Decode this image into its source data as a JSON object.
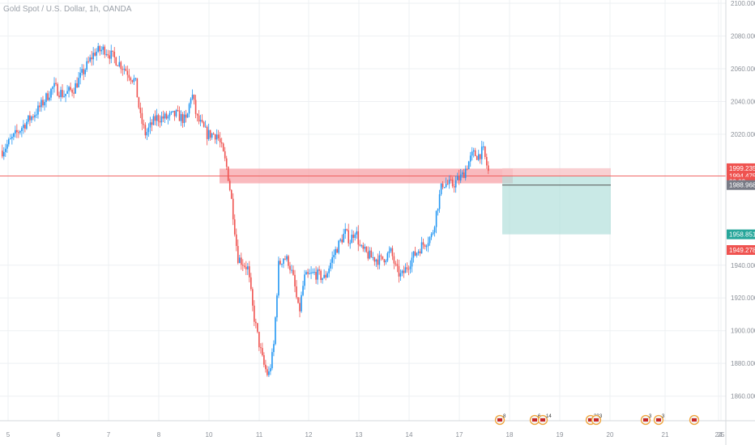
{
  "header": {
    "symbol_title": "Gold Spot / U.S. Dollar, 1h, OANDA"
  },
  "colors": {
    "up": "#2196f3",
    "down": "#ef5350",
    "zone": "#f7a3a8",
    "stop": "#f8c4c7",
    "target": "#b2dfdb",
    "grid": "#eef0f3",
    "price_line": "#ef5350"
  },
  "chart_data": {
    "type": "candlestick",
    "title": "Gold Spot / U.S. Dollar, 1h, OANDA",
    "y_range": [
      1845,
      2102
    ],
    "y_ticks": [
      "1860.000",
      "1880.000",
      "1900.000",
      "1920.000",
      "1940.000",
      "2020.000",
      "2040.000",
      "2060.000",
      "2080.000",
      "2100.000"
    ],
    "x_ticks": [
      "5",
      "6",
      "7",
      "8",
      "10",
      "11",
      "12",
      "13",
      "14",
      "17",
      "18",
      "19",
      "20",
      "21",
      "24",
      "25"
    ],
    "price_path": [
      [
        0,
        2010
      ],
      [
        4,
        2025
      ],
      [
        7,
        2035
      ],
      [
        10,
        2049
      ],
      [
        12,
        2044
      ],
      [
        14,
        2048
      ],
      [
        16,
        2059
      ],
      [
        18,
        2070
      ],
      [
        20,
        2072
      ],
      [
        22,
        2066
      ],
      [
        24,
        2060
      ],
      [
        26,
        2052
      ],
      [
        27,
        2030
      ],
      [
        28,
        2020
      ],
      [
        30,
        2030
      ],
      [
        32,
        2030
      ],
      [
        34,
        2032
      ],
      [
        36,
        2028
      ],
      [
        37,
        2046
      ],
      [
        38,
        2030
      ],
      [
        40,
        2020
      ],
      [
        42,
        2020
      ],
      [
        43,
        2010
      ],
      [
        44,
        1998
      ],
      [
        45,
        1975
      ],
      [
        46,
        1945
      ],
      [
        48,
        1938
      ],
      [
        49,
        1912
      ],
      [
        50,
        1895
      ],
      [
        51,
        1880
      ],
      [
        52,
        1872
      ],
      [
        53,
        1888
      ],
      [
        54,
        1940
      ],
      [
        55,
        1945
      ],
      [
        56,
        1942
      ],
      [
        57,
        1930
      ],
      [
        58,
        1910
      ],
      [
        59,
        1932
      ],
      [
        61,
        1935
      ],
      [
        63,
        1932
      ],
      [
        65,
        1948
      ],
      [
        67,
        1960
      ],
      [
        68,
        1955
      ],
      [
        69,
        1962
      ],
      [
        70,
        1950
      ],
      [
        72,
        1945
      ],
      [
        74,
        1943
      ],
      [
        76,
        1948
      ],
      [
        77,
        1937
      ],
      [
        78,
        1933
      ],
      [
        80,
        1944
      ],
      [
        82,
        1952
      ],
      [
        84,
        1958
      ],
      [
        85,
        1975
      ],
      [
        86,
        1990
      ],
      [
        88,
        1989
      ],
      [
        89,
        1992
      ],
      [
        90,
        1995
      ],
      [
        91,
        2002
      ],
      [
        92,
        2008
      ],
      [
        93,
        2007
      ],
      [
        94,
        2010
      ],
      [
        95,
        1997
      ]
    ],
    "resistance_zone": {
      "from": 1990,
      "to": 1999
    },
    "position": {
      "entry": 1994.475,
      "stop": 1999.235,
      "target": 1958.851
    },
    "price_tags": [
      {
        "label": "1999.235",
        "value": 1999.235,
        "color": "#ef5350"
      },
      {
        "label": "1994.475",
        "value": 1994.475,
        "color": "#ef5350"
      },
      {
        "label": "33:03",
        "value": 1991.0,
        "color": "#ef5350"
      },
      {
        "label": "1988.968",
        "value": 1988.968,
        "color": "#787b86"
      },
      {
        "label": "1958.851",
        "value": 1958.851,
        "color": "#26a69a"
      },
      {
        "label": "1949.278",
        "value": 1949.278,
        "color": "#ef5350"
      }
    ],
    "events": [
      {
        "count": "8"
      },
      {
        "count": "6"
      },
      {
        "count": "14"
      },
      {
        "count": "33"
      },
      {
        "count": "3"
      },
      {
        "count": "3"
      },
      {
        "count": "3"
      },
      {
        "count": ""
      }
    ]
  }
}
